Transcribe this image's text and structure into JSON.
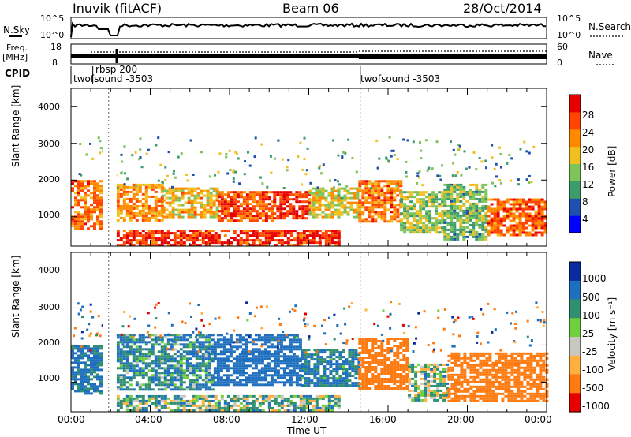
{
  "header": {
    "station": "Inuvik (fitACF)",
    "beam": "Beam 06",
    "date": "28/Oct/2014"
  },
  "top_panel": {
    "left_label": "N.Sky",
    "right_label": "N.Search",
    "left_ticks": [
      "10^5",
      "10^0"
    ],
    "right_ticks": [
      "10^5",
      "10^0"
    ]
  },
  "freq_panel": {
    "left_label_1": "Freq.",
    "left_label_2": "[MHz]",
    "right_label": "Nave",
    "left_ticks": [
      "18",
      "8"
    ],
    "right_ticks": [
      "60",
      "0"
    ]
  },
  "cpid_panel": {
    "label": "CPID",
    "segments": [
      {
        "name": "twofsound -3503",
        "start_hour": 0.0
      },
      {
        "name": "rbsp 200",
        "start_hour": 1.1
      },
      {
        "name": "twofsound -3503",
        "start_hour": 14.6
      }
    ]
  },
  "chart_data": [
    {
      "type": "heatmap",
      "name": "Power",
      "ylabel": "Slant Range [km]",
      "xlim_hours": [
        0,
        24
      ],
      "ylim_km": [
        200,
        4500
      ],
      "yticks": [
        "1000",
        "2000",
        "3000",
        "4000"
      ],
      "colorbar_label": "Power [dB]",
      "colorbar_ticks": [
        "4",
        "8",
        "12",
        "16",
        "20",
        "24",
        "28"
      ],
      "colorbar_range": [
        0,
        30
      ],
      "colors": [
        "#0000ff",
        "#1f4faf",
        "#3c9c6c",
        "#7fc45a",
        "#f0c020",
        "#ff8a00",
        "#ff4500",
        "#e60000"
      ],
      "regions": [
        {
          "x0": 0.0,
          "x1": 1.6,
          "y0": 700,
          "y1": 2000,
          "value": 22
        },
        {
          "x0": 2.3,
          "x1": 4.6,
          "y0": 900,
          "y1": 1900,
          "value": 20
        },
        {
          "x0": 2.3,
          "x1": 13.5,
          "y0": 250,
          "y1": 650,
          "value": 26
        },
        {
          "x0": 4.6,
          "x1": 7.4,
          "y0": 1000,
          "y1": 1800,
          "value": 18
        },
        {
          "x0": 7.4,
          "x1": 10.2,
          "y0": 900,
          "y1": 1700,
          "value": 24
        },
        {
          "x0": 10.2,
          "x1": 12.0,
          "y0": 950,
          "y1": 1700,
          "value": 27
        },
        {
          "x0": 12.0,
          "x1": 14.5,
          "y0": 1000,
          "y1": 1800,
          "value": 16
        },
        {
          "x0": 14.5,
          "x1": 16.6,
          "y0": 900,
          "y1": 2000,
          "value": 22
        },
        {
          "x0": 16.6,
          "x1": 18.8,
          "y0": 600,
          "y1": 1700,
          "value": 14
        },
        {
          "x0": 18.8,
          "x1": 21.0,
          "y0": 400,
          "y1": 1900,
          "value": 12
        },
        {
          "x0": 21.0,
          "x1": 24.0,
          "y0": 500,
          "y1": 1500,
          "value": 23
        }
      ]
    },
    {
      "type": "heatmap",
      "name": "Velocity",
      "ylabel": "Slant Range [km]",
      "xlabel": "Time UT",
      "xlim_hours": [
        0,
        24
      ],
      "ylim_km": [
        200,
        4500
      ],
      "yticks": [
        "1000",
        "2000",
        "3000",
        "4000"
      ],
      "xticks": [
        "00:00",
        "04:00",
        "08:00",
        "12:00",
        "16:00",
        "20:00",
        "00:00"
      ],
      "colorbar_label": "Velocity [m s⁻¹]",
      "colorbar_ticks": [
        "1000",
        "500",
        "100",
        "25",
        "-25",
        "-100",
        "-500",
        "-1000"
      ],
      "colors": [
        "#0a2aa0",
        "#1f6fbf",
        "#2f8f6f",
        "#6fcf3f",
        "#c8c8c0",
        "#ffb040",
        "#ff7a10",
        "#e60000"
      ],
      "regions": [
        {
          "x0": 0.0,
          "x1": 1.6,
          "y0": 700,
          "y1": 2000,
          "value": 150
        },
        {
          "x0": 2.3,
          "x1": 7.2,
          "y0": 800,
          "y1": 2300,
          "value": 90
        },
        {
          "x0": 2.3,
          "x1": 13.5,
          "y0": 250,
          "y1": 650,
          "value": 40
        },
        {
          "x0": 7.2,
          "x1": 11.6,
          "y0": 900,
          "y1": 2300,
          "value": 400
        },
        {
          "x0": 11.6,
          "x1": 14.5,
          "y0": 900,
          "y1": 1900,
          "value": 120
        },
        {
          "x0": 14.5,
          "x1": 17.0,
          "y0": 800,
          "y1": 2200,
          "value": -250
        },
        {
          "x0": 17.0,
          "x1": 19.0,
          "y0": 500,
          "y1": 1500,
          "value": 30
        },
        {
          "x0": 19.0,
          "x1": 24.0,
          "y0": 500,
          "y1": 1800,
          "value": -200
        }
      ]
    }
  ]
}
